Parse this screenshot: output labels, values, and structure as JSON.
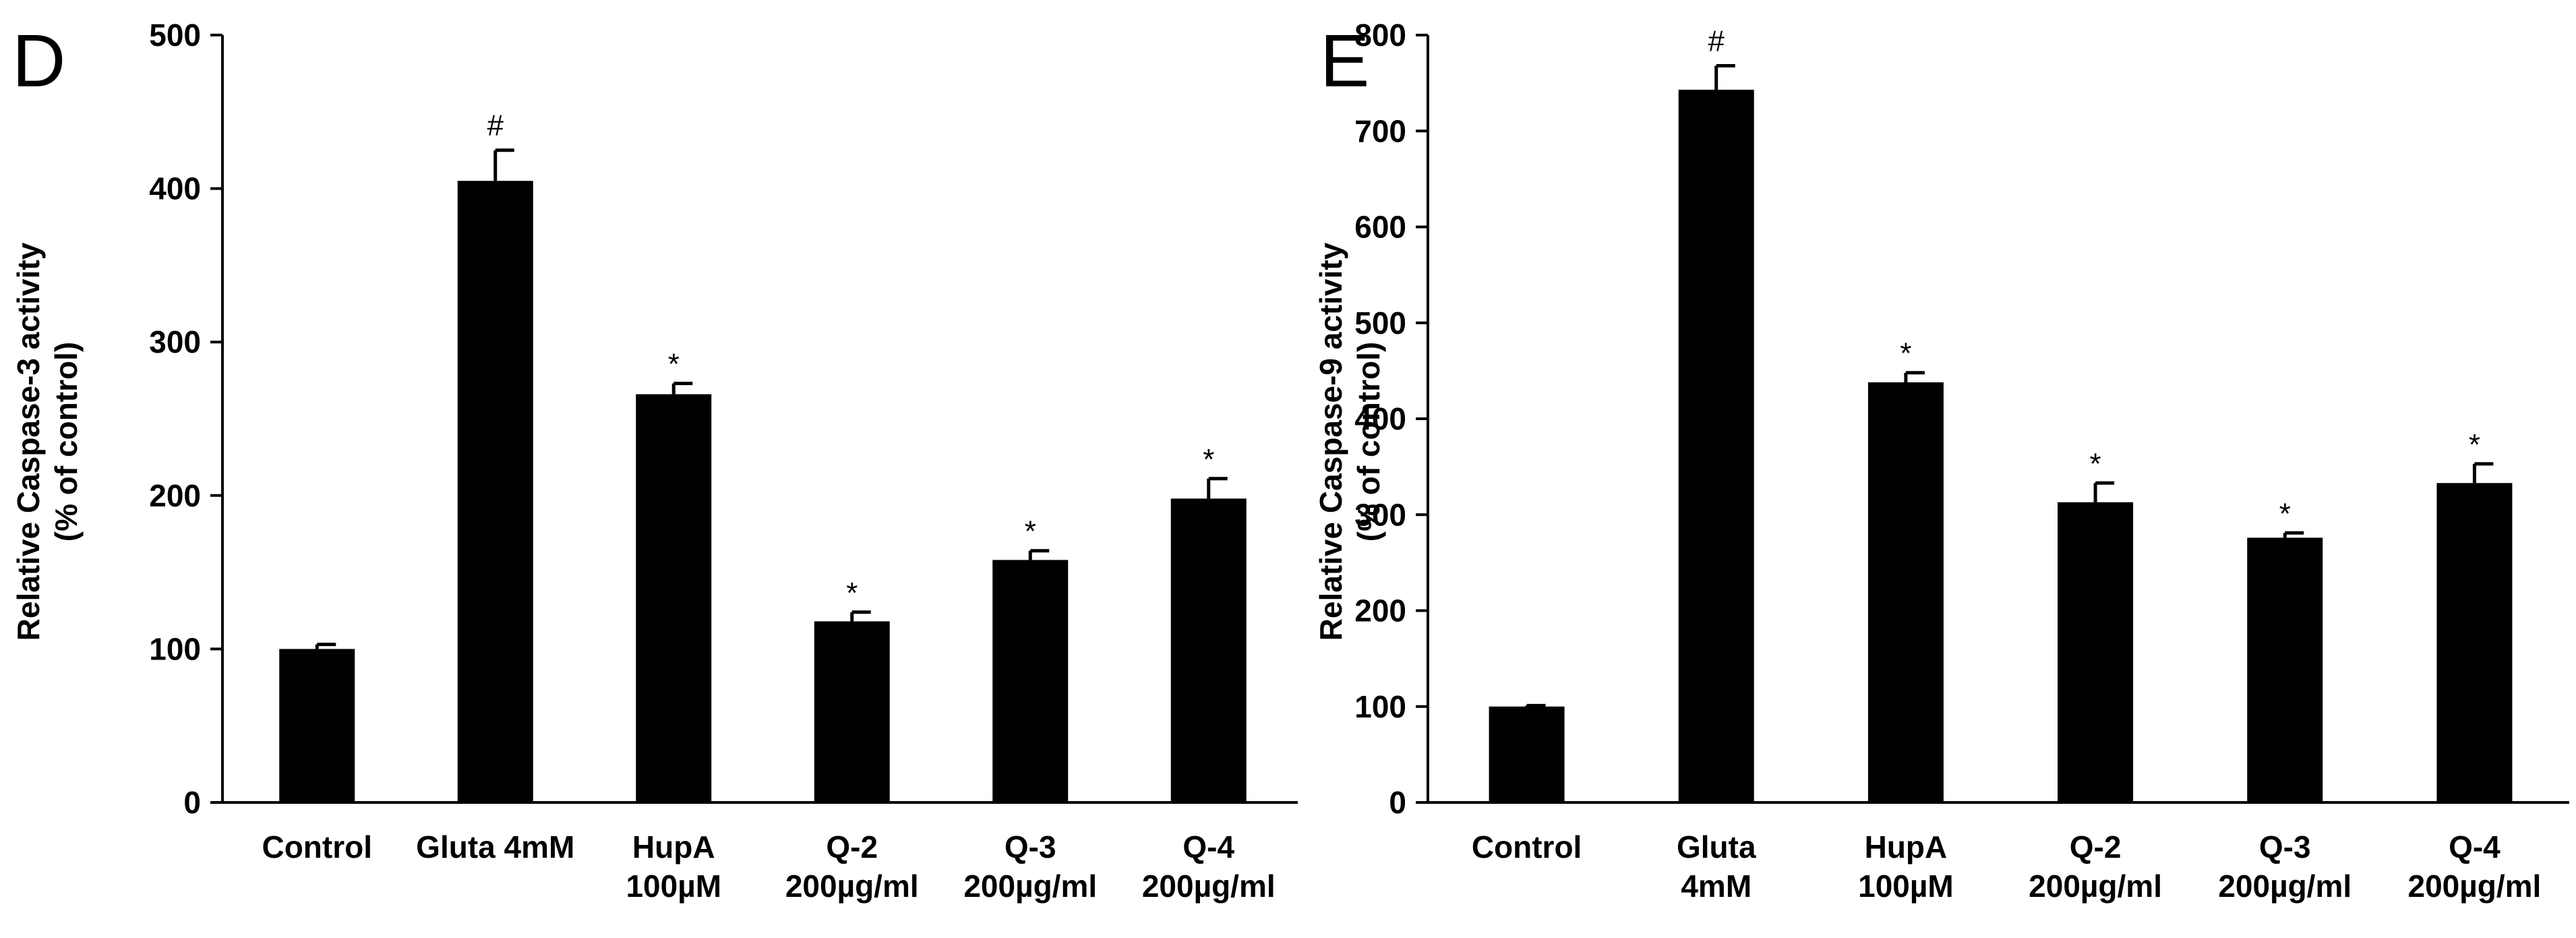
{
  "chart_data": [
    {
      "type": "bar",
      "panel": "D",
      "title": "",
      "xlabel": "",
      "ylabel": "Relative Caspase-3 activity",
      "ylabel_line2": "(% of control)",
      "ylim": [
        0,
        500
      ],
      "yticks": [
        "0",
        "100",
        "200",
        "300",
        "400",
        "500"
      ],
      "categories": [
        [
          "Control"
        ],
        [
          "Gluta 4mM"
        ],
        [
          "HupA",
          "100µM"
        ],
        [
          "Q-2",
          "200µg/ml"
        ],
        [
          "Q-3",
          "200µg/ml"
        ],
        [
          "Q-4",
          "200µg/ml"
        ]
      ],
      "values": [
        100,
        405,
        266,
        118,
        158,
        198
      ],
      "errors": [
        3,
        20,
        7,
        6,
        6,
        13
      ],
      "annotations": [
        "",
        "#",
        "*",
        "*",
        "*",
        "*"
      ],
      "bar_color": "#000000"
    },
    {
      "type": "bar",
      "panel": "E",
      "title": "",
      "xlabel": "",
      "ylabel": "Relative Caspase-9 activity",
      "ylabel_line2": "(% of control)",
      "ylim": [
        0,
        800
      ],
      "yticks": [
        "0",
        "100",
        "200",
        "300",
        "400",
        "500",
        "600",
        "700",
        "800"
      ],
      "categories": [
        [
          "Control"
        ],
        [
          "Gluta",
          "4mM"
        ],
        [
          "HupA",
          "100µM"
        ],
        [
          "Q-2",
          "200µg/ml"
        ],
        [
          "Q-3",
          "200µg/ml"
        ],
        [
          "Q-4",
          "200µg/ml"
        ]
      ],
      "values": [
        100,
        743,
        438,
        313,
        276,
        333
      ],
      "errors": [
        1,
        25,
        10,
        20,
        5,
        20
      ],
      "annotations": [
        "",
        "#",
        "*",
        "*",
        "*",
        "*"
      ],
      "bar_color": "#000000"
    }
  ]
}
